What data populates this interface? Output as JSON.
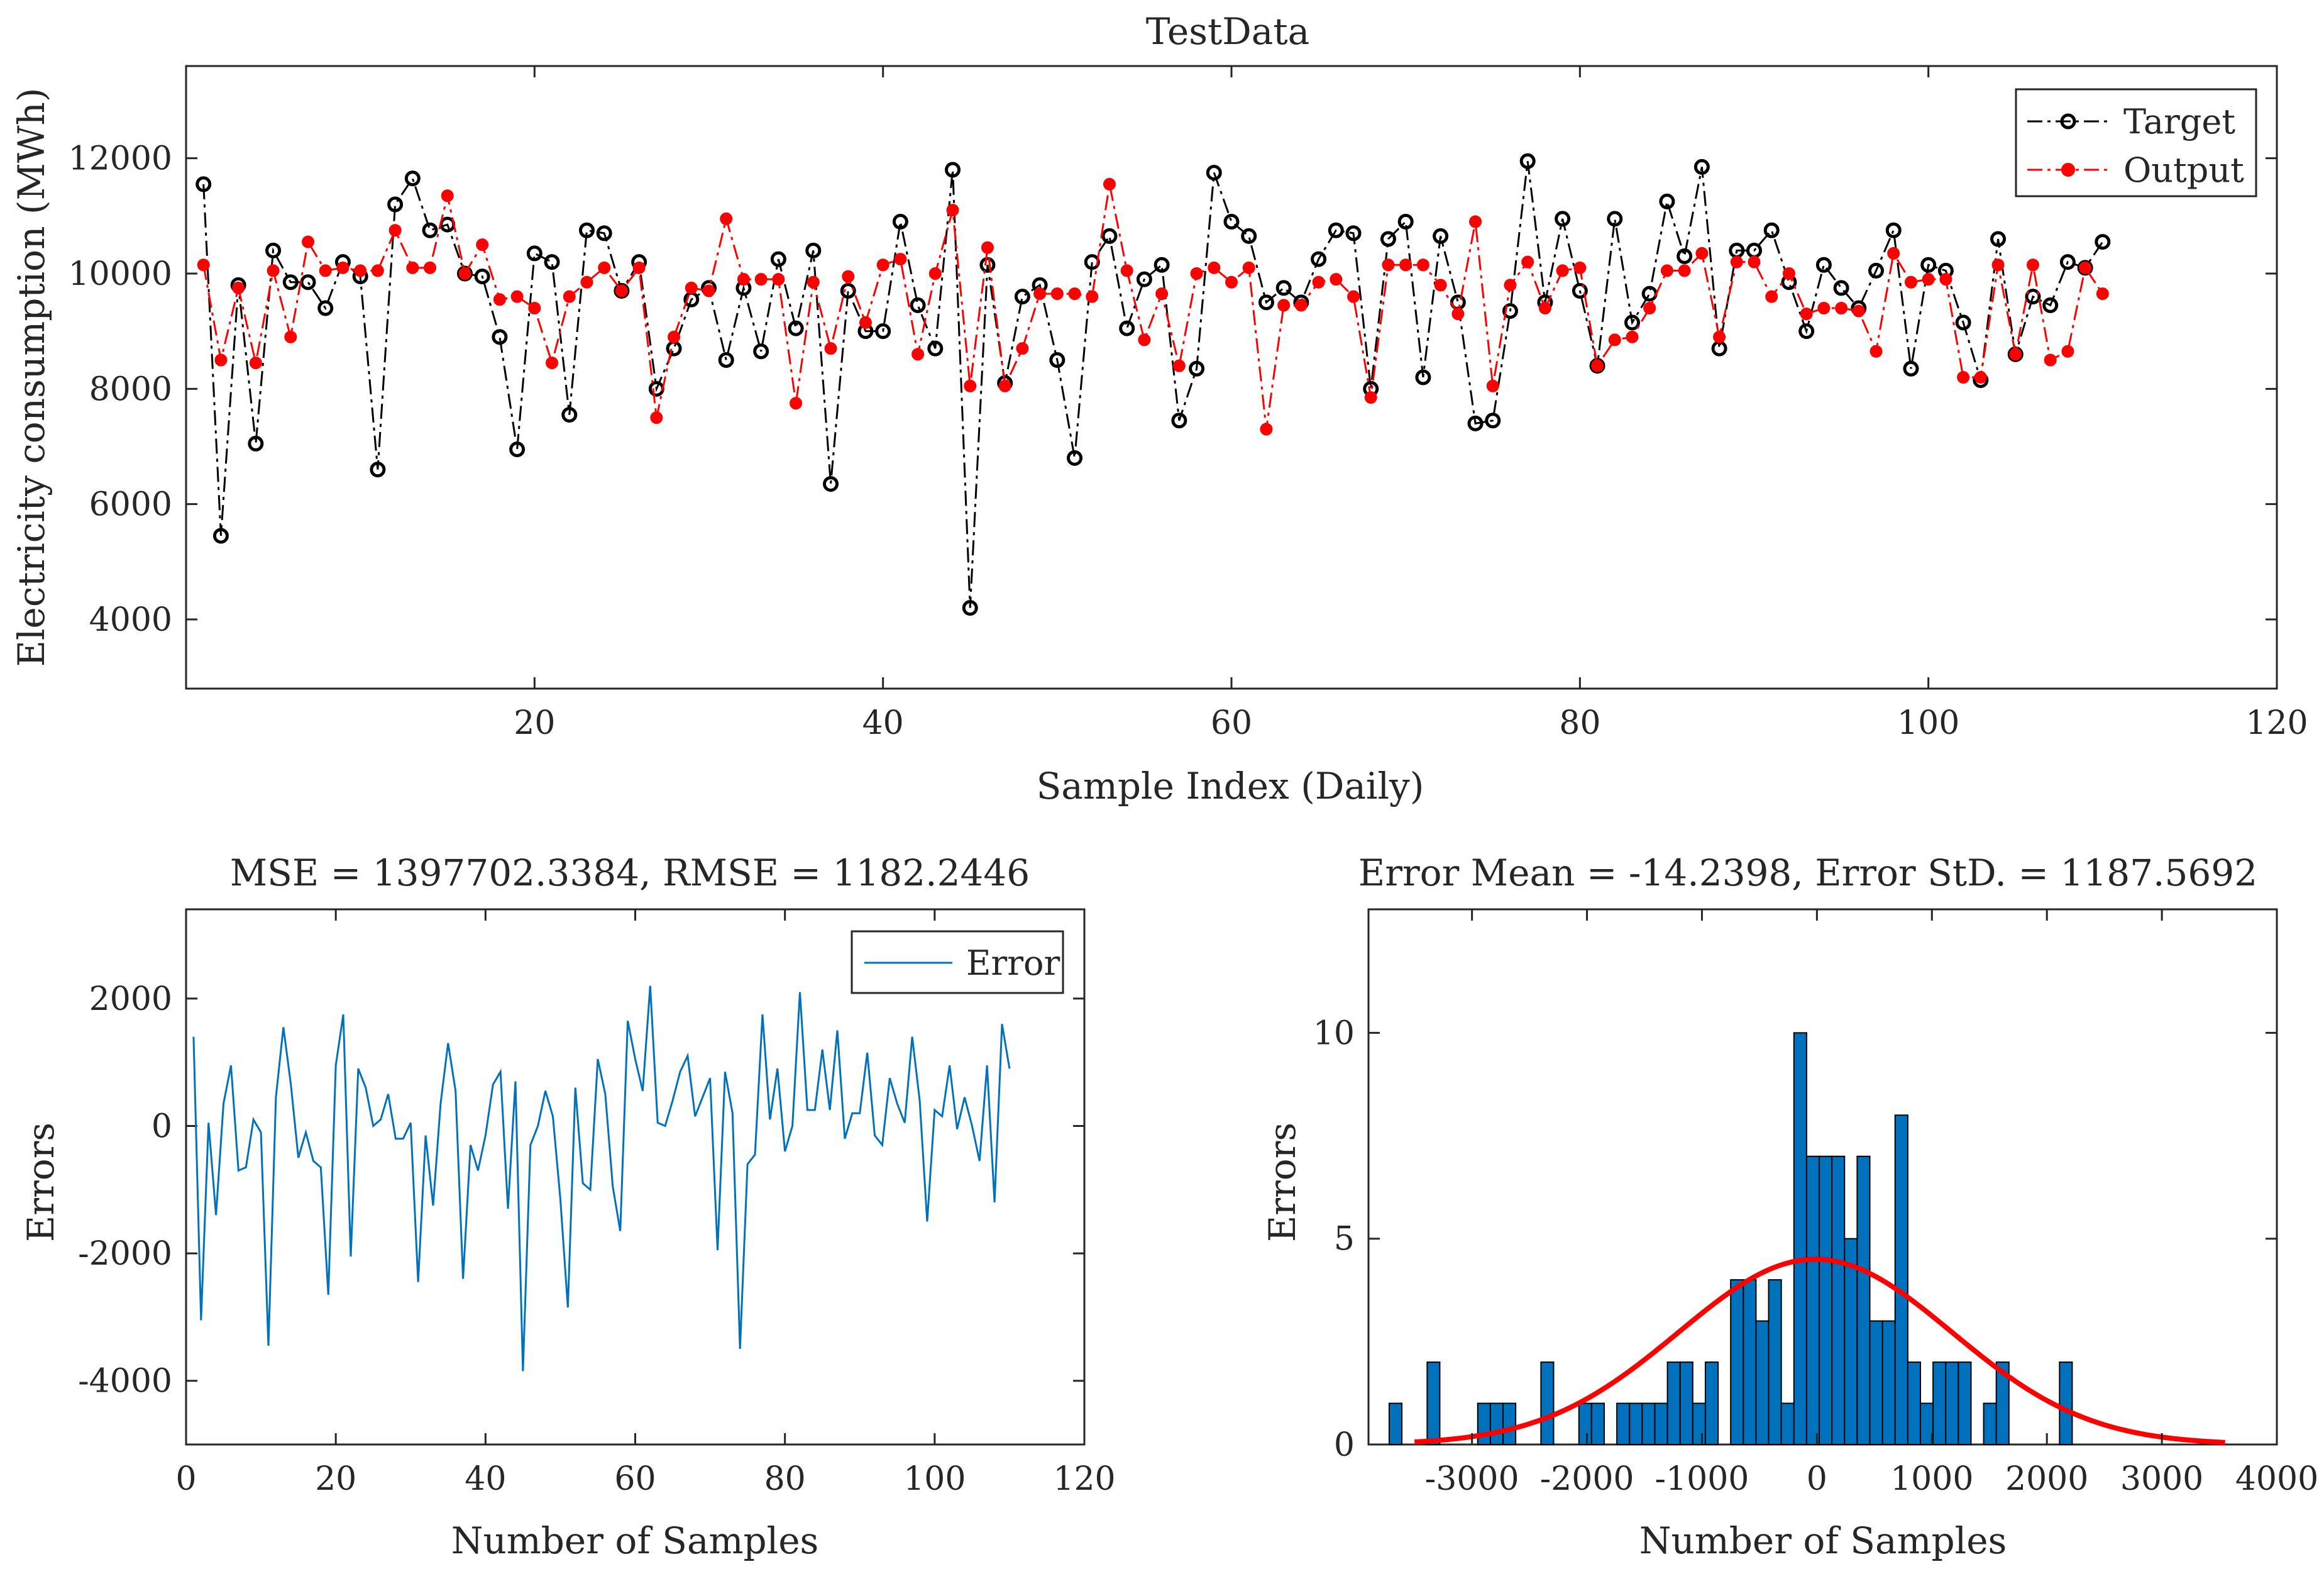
{
  "colors": {
    "target": "#000000",
    "output": "#ff0000",
    "error": "#0072bd",
    "hist_fill": "#0072bd",
    "hist_edge": "#000000",
    "fit": "#ff0000"
  },
  "chart_data": [
    {
      "type": "line",
      "title": "TestData",
      "xlabel": "Sample Index (Daily)",
      "ylabel": "Electricity consumption (MWh)",
      "xlim": [
        0,
        120
      ],
      "ylim": [
        2800,
        13600
      ],
      "xticks": [
        20,
        40,
        60,
        80,
        100,
        120
      ],
      "yticks": [
        4000,
        6000,
        8000,
        10000,
        12000
      ],
      "legend": [
        "Target",
        "Output"
      ],
      "legend_position": "top-right",
      "x": [
        1,
        2,
        3,
        4,
        5,
        6,
        7,
        8,
        9,
        10,
        11,
        12,
        13,
        14,
        15,
        16,
        17,
        18,
        19,
        20,
        21,
        22,
        23,
        24,
        25,
        26,
        27,
        28,
        29,
        30,
        31,
        32,
        33,
        34,
        35,
        36,
        37,
        38,
        39,
        40,
        41,
        42,
        43,
        44,
        45,
        46,
        47,
        48,
        49,
        50,
        51,
        52,
        53,
        54,
        55,
        56,
        57,
        58,
        59,
        60,
        61,
        62,
        63,
        64,
        65,
        66,
        67,
        68,
        69,
        70,
        71,
        72,
        73,
        74,
        75,
        76,
        77,
        78,
        79,
        80,
        81,
        82,
        83,
        84,
        85,
        86,
        87,
        88,
        89,
        90,
        91,
        92,
        93,
        94,
        95,
        96,
        97,
        98,
        99,
        100,
        101,
        102,
        103,
        104,
        105,
        106,
        107,
        108,
        109,
        110
      ],
      "series": [
        {
          "name": "Target",
          "values": [
            11550,
            5450,
            9800,
            7050,
            10400,
            9850,
            9850,
            9400,
            10200,
            9950,
            6600,
            11200,
            11650,
            10750,
            10850,
            10000,
            9950,
            8900,
            6950,
            10350,
            10200,
            7550,
            10750,
            10700,
            9700,
            10200,
            8000,
            8700,
            9550,
            9750,
            8500,
            9750,
            8650,
            10250,
            9050,
            10400,
            6350,
            9700,
            9000,
            9000,
            10900,
            9450,
            8700,
            11800,
            4200,
            10150,
            8100,
            9600,
            9800,
            8500,
            6800,
            10200,
            10650,
            9050,
            9900,
            10150,
            7450,
            8350,
            11750,
            10900,
            10650,
            9500,
            9750,
            9500,
            10250,
            10750,
            10700,
            8000,
            10600,
            10900,
            8200,
            10650,
            9500,
            7400,
            7450,
            9350,
            11950,
            9500,
            10950,
            9700,
            8400,
            10950,
            9150,
            9650,
            11250,
            10300,
            11850,
            8700,
            10400,
            10400,
            10750,
            9850,
            9000,
            10150,
            9750,
            9400,
            10050,
            10750,
            8350,
            10150,
            10050,
            9150,
            8150,
            10600,
            8600,
            9600,
            9450,
            10200,
            10100,
            10550
          ]
        },
        {
          "name": "Output",
          "values": [
            10150,
            8500,
            9750,
            8450,
            10050,
            8900,
            10550,
            10050,
            10100,
            10050,
            10050,
            10750,
            10100,
            10100,
            11350,
            10000,
            10500,
            9550,
            9600,
            9400,
            8450,
            9600,
            9850,
            10100,
            9700,
            10100,
            7500,
            8900,
            9750,
            9700,
            10950,
            9900,
            9900,
            9900,
            7750,
            9850,
            8700,
            9950,
            9150,
            10150,
            10250,
            8600,
            10000,
            11100,
            8050,
            10450,
            8050,
            8700,
            9650,
            9650,
            9650,
            9600,
            11550,
            10050,
            8850,
            9650,
            8400,
            10000,
            10100,
            9850,
            10100,
            7300,
            9450,
            9450,
            9850,
            9900,
            9600,
            7850,
            10150,
            10150,
            10150,
            9800,
            9300,
            10900,
            8050,
            9800,
            10200,
            9400,
            10050,
            10100,
            8400,
            8850,
            8900,
            9400,
            10050,
            10050,
            10350,
            8900,
            10200,
            10200,
            9600,
            10000,
            9300,
            9400,
            9400,
            9350,
            8650,
            10350,
            9850,
            9900,
            9900,
            8200,
            8200,
            10150,
            8600,
            10150,
            8500,
            8650,
            10100,
            9650
          ]
        }
      ]
    },
    {
      "type": "line",
      "title": "MSE = 1397702.3384, RMSE = 1182.2446",
      "xlabel": "Number of Samples",
      "ylabel": "Errors",
      "xlim": [
        0,
        120
      ],
      "ylim": [
        -5000,
        3400
      ],
      "xticks": [
        0,
        20,
        40,
        60,
        80,
        100,
        120
      ],
      "yticks": [
        -4000,
        -2000,
        0,
        2000
      ],
      "legend": [
        "Error"
      ],
      "legend_position": "top-right",
      "series": [
        {
          "name": "Error",
          "values": [
            1400,
            -3050,
            50,
            -1400,
            350,
            950,
            -700,
            -650,
            100,
            -100,
            -3450,
            450,
            1550,
            650,
            -500,
            -100,
            -550,
            -650,
            -2650,
            950,
            1750,
            -2050,
            900,
            600,
            0,
            100,
            500,
            -200,
            -200,
            50,
            -2450,
            -150,
            -1250,
            350,
            1300,
            550,
            -2400,
            -300,
            -700,
            -150,
            650,
            850,
            -1300,
            700,
            -3850,
            -300,
            0,
            550,
            150,
            -1150,
            -2850,
            600,
            -900,
            -1000,
            1050,
            500,
            -950,
            -1650,
            1650,
            1050,
            550,
            2200,
            50,
            0,
            400,
            850,
            1100,
            150,
            450,
            750,
            -1950,
            850,
            200,
            -3500,
            -600,
            -450,
            1750,
            100,
            900,
            -400,
            0,
            2100,
            250,
            250,
            1200,
            250,
            1500,
            -200,
            200,
            200,
            1150,
            -150,
            -300,
            750,
            350,
            50,
            1400,
            400,
            -1500,
            250,
            150,
            950,
            -50,
            450,
            0,
            -550,
            950,
            -1200,
            1600,
            900
          ]
        }
      ]
    },
    {
      "type": "bar",
      "subtype": "histogram",
      "title": "Error Mean = -14.2398, Error StD. = 1187.5692",
      "xlabel": "Number of Samples",
      "ylabel": "Errors",
      "xlim": [
        -3900,
        4000
      ],
      "ylim": [
        0,
        13
      ],
      "xticks": [
        -3000,
        -2000,
        -1000,
        0,
        1000,
        2000,
        3000,
        4000
      ],
      "yticks": [
        0,
        5,
        10
      ],
      "bin_width": 110,
      "bin_edges_start": -3720,
      "counts": [
        1,
        0,
        0,
        2,
        0,
        0,
        0,
        1,
        1,
        1,
        0,
        0,
        2,
        0,
        0,
        1,
        1,
        0,
        1,
        1,
        1,
        1,
        2,
        2,
        1,
        2,
        0,
        4,
        4,
        3,
        4,
        1,
        10,
        7,
        7,
        7,
        5,
        7,
        3,
        3,
        8,
        2,
        1,
        2,
        2,
        2,
        0,
        1,
        2,
        0,
        0,
        0,
        0,
        2
      ],
      "fit_curve": {
        "type": "normal",
        "mean": -14.2398,
        "std": 1187.5692,
        "peak_count": 4.5,
        "x_range": [
          -3500,
          3550
        ]
      }
    }
  ]
}
